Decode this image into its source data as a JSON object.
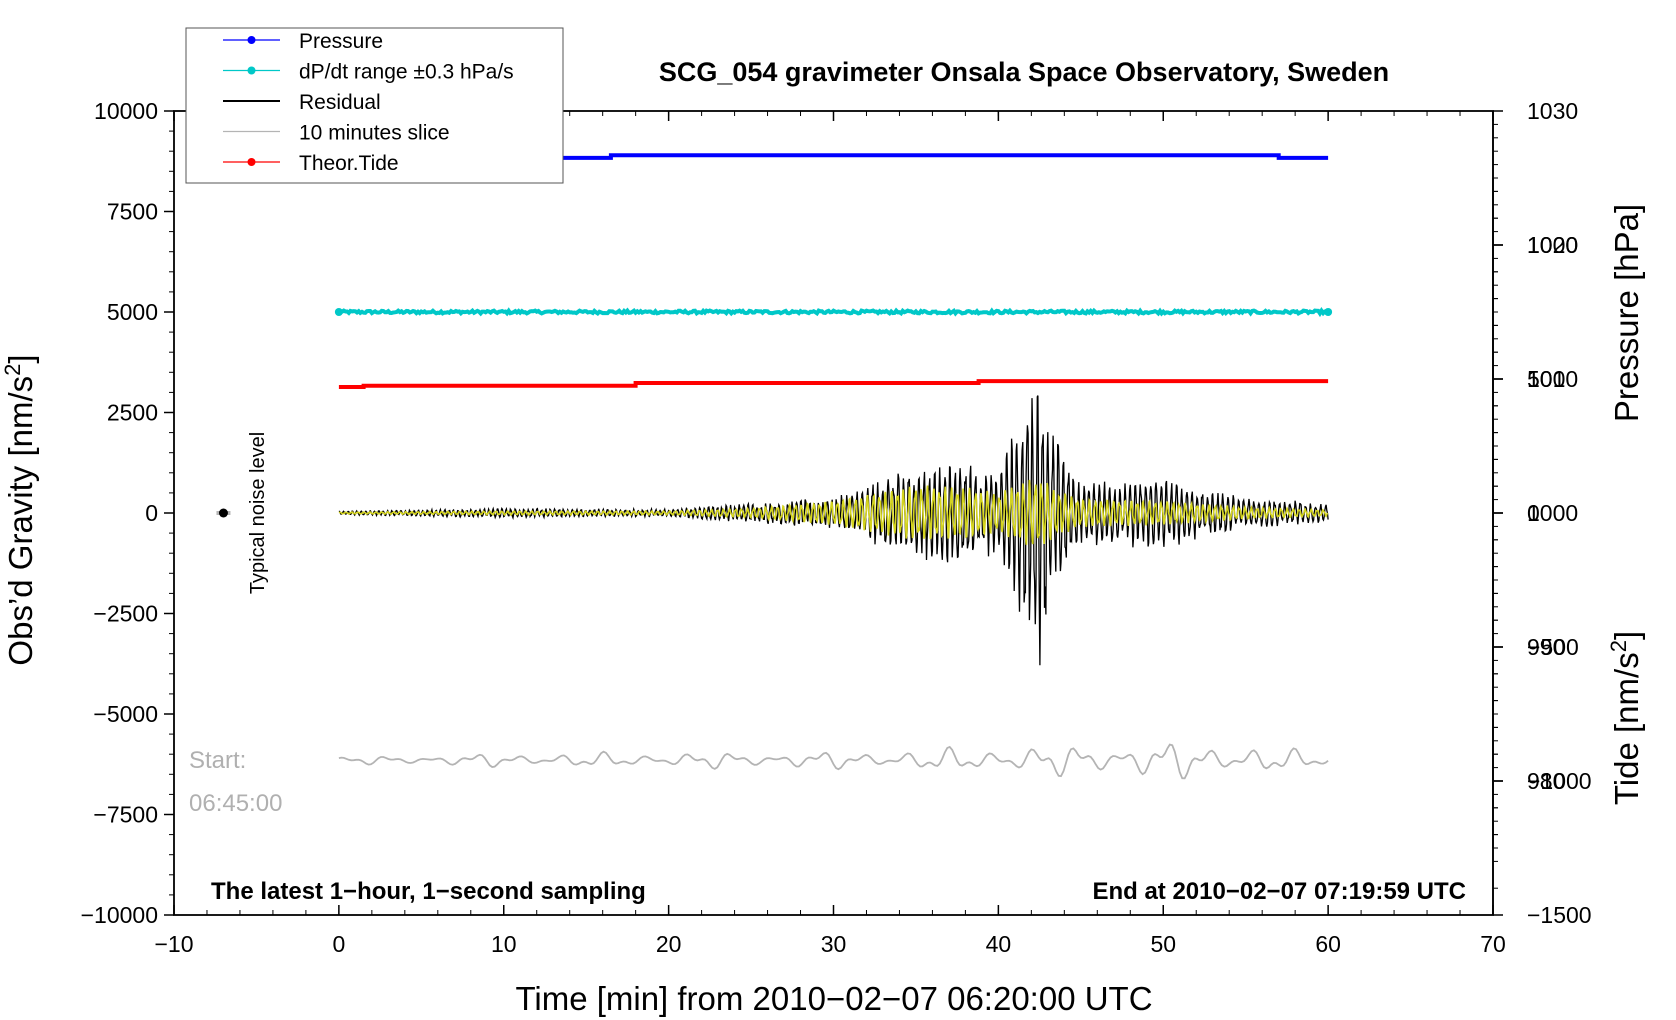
{
  "chart_data": {
    "type": "line",
    "title": "SCG_054 gravimeter Onsala Space Observatory, Sweden",
    "xlabel": "Time [min] from 2010−02−07 06:20:00 UTC",
    "xlim": [
      -10,
      70
    ],
    "xticks": [
      -10,
      0,
      10,
      20,
      30,
      40,
      50,
      60,
      70
    ],
    "xtick_labels": [
      "−10",
      "0",
      "10",
      "20",
      "30",
      "40",
      "50",
      "60",
      "70"
    ],
    "left_axis": {
      "label": "Obs’d Gravity [nm/s",
      "label_sup": "2",
      "label_close": "]",
      "ylim": [
        -10000,
        10000
      ],
      "ticks": [
        10000,
        7500,
        5000,
        2500,
        0,
        -2500,
        -5000,
        -7500,
        -10000
      ],
      "tick_labels": [
        "10000",
        "7500",
        "5000",
        "2500",
        "0",
        "−2500",
        "−5000",
        "−7500",
        "−10000"
      ]
    },
    "right_pressure_axis": {
      "label": "Pressure [hPa]",
      "ylim": [
        970,
        1030
      ],
      "ticks": [
        1030,
        1020,
        1010,
        1000,
        990,
        980
      ],
      "tick_labels": [
        "1030",
        "1020",
        "1010",
        "1000",
        "990",
        "980"
      ]
    },
    "right_tide_axis": {
      "label": "Tide [nm/s",
      "label_sup": "2",
      "label_close": "]",
      "ylim": [
        -1500,
        1500
      ],
      "ticks": [
        1000,
        500,
        0,
        -500,
        -1000,
        -1500
      ],
      "tick_labels": [
        "1000",
        "500",
        "0",
        "−500",
        "−1000",
        "−1500"
      ]
    },
    "legend": {
      "position": "top-left",
      "entries": [
        {
          "label": "Pressure",
          "color": "#0000ff",
          "marker": true
        },
        {
          "label": "dP/dt range ±0.3 hPa/s",
          "color": "#00c8c8",
          "marker": true
        },
        {
          "label": "Residual",
          "color": "#000000",
          "marker": false
        },
        {
          "label": "10 minutes slice",
          "color": "#b4b4b4",
          "marker": false
        },
        {
          "label": "Theor.Tide",
          "color": "#ff0000",
          "marker": true
        }
      ]
    },
    "series": [
      {
        "name": "Pressure",
        "axis": "pressure",
        "color": "#0000ff",
        "x": [
          0,
          16.5,
          16.5,
          57,
          57,
          60
        ],
        "y": [
          1026.5,
          1026.5,
          1026.7,
          1026.7,
          1026.5,
          1026.5
        ]
      },
      {
        "name": "dP/dt range",
        "axis": "left",
        "color": "#00c8c8",
        "x": [
          0,
          60
        ],
        "y": [
          5000,
          5000
        ]
      },
      {
        "name": "Theor.Tide",
        "axis": "tide",
        "color": "#ff0000",
        "x": [
          0,
          1.5,
          1.5,
          18,
          18,
          38.8,
          38.8,
          60
        ],
        "y": [
          470,
          470,
          475,
          475,
          485,
          485,
          492,
          492
        ]
      },
      {
        "name": "Residual",
        "axis": "left",
        "color": "#000000",
        "envelope": {
          "x": [
            0,
            10,
            20,
            25,
            30,
            35,
            38,
            40,
            41.5,
            42.5,
            43.5,
            45,
            50,
            55,
            60
          ],
          "amp": [
            50,
            120,
            100,
            250,
            400,
            1200,
            1300,
            1000,
            2800,
            3900,
            2000,
            800,
            900,
            400,
            250
          ]
        }
      },
      {
        "name": "Filtered residual",
        "axis": "left",
        "color": "#d4d41e",
        "envelope": {
          "x": [
            0,
            10,
            20,
            25,
            30,
            35,
            38,
            40,
            41.5,
            42.5,
            43.5,
            45,
            50,
            55,
            60
          ],
          "amp": [
            20,
            50,
            50,
            120,
            300,
            700,
            650,
            500,
            800,
            900,
            600,
            350,
            300,
            150,
            80
          ]
        }
      },
      {
        "name": "10 minutes slice",
        "axis": "left",
        "color": "#b4b4b4",
        "baseline": -6150,
        "envelope": {
          "x": [
            0,
            10,
            30,
            35,
            40,
            45,
            50,
            55,
            60
          ],
          "amp": [
            100,
            200,
            250,
            300,
            400,
            450,
            550,
            450,
            200
          ]
        }
      }
    ],
    "noise_marker": {
      "x": -7,
      "y": 0,
      "label": "Typical noise level"
    },
    "annotations": {
      "start_label": "Start:",
      "start_time": "06:45:00",
      "bottom_left": "The latest 1−hour, 1−second sampling",
      "bottom_right": "End at 2010−02−07 07:19:59 UTC"
    }
  }
}
